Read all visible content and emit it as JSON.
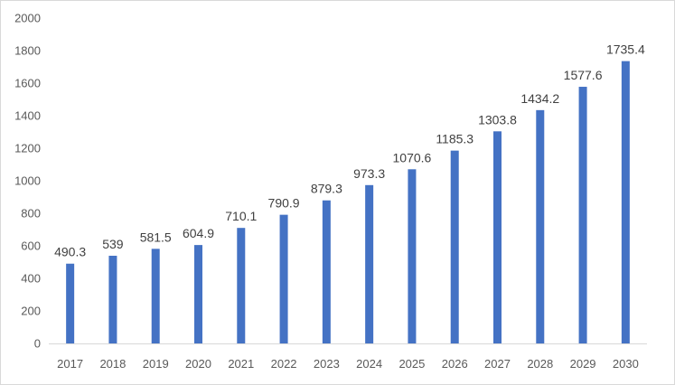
{
  "chart_data": {
    "type": "bar",
    "title": "",
    "xlabel": "",
    "ylabel": "",
    "ylim": [
      0,
      2000
    ],
    "ytick_step": 200,
    "grid": false,
    "legend": "none",
    "bar_color": "#4472C4",
    "categories": [
      "2017",
      "2018",
      "2019",
      "2020",
      "2021",
      "2022",
      "2023",
      "2024",
      "2025",
      "2026",
      "2027",
      "2028",
      "2029",
      "2030"
    ],
    "values": [
      490.3,
      539,
      581.5,
      604.9,
      710.1,
      790.9,
      879.3,
      973.3,
      1070.6,
      1185.3,
      1303.8,
      1434.2,
      1577.6,
      1735.4
    ],
    "data_labels": [
      "490.3",
      "539",
      "581.5",
      "604.9",
      "710.1",
      "790.9",
      "879.3",
      "973.3",
      "1070.6",
      "1185.3",
      "1303.8",
      "1434.2",
      "1577.6",
      "1735.4"
    ]
  }
}
